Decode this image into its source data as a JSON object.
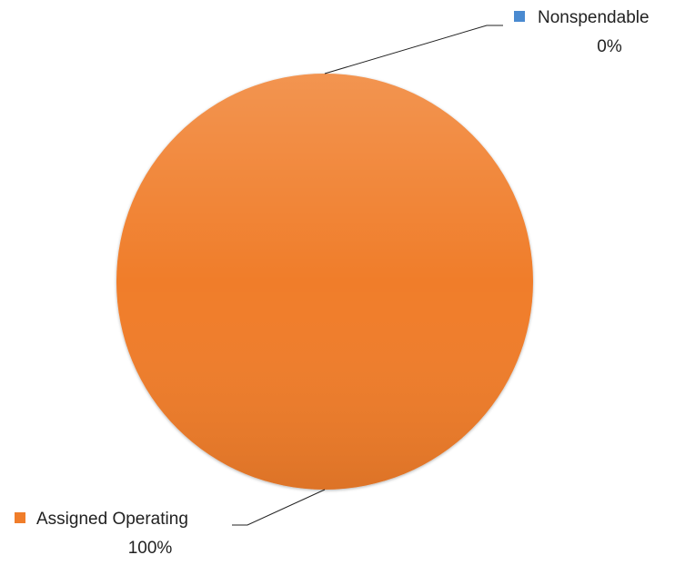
{
  "chart_data": {
    "type": "pie",
    "categories": [
      "Nonspendable",
      "Assigned Operating"
    ],
    "values": [
      0,
      100
    ],
    "value_labels": [
      "0%",
      "100%"
    ],
    "colors": [
      "#4a8ad0",
      "#f07d2a"
    ]
  }
}
